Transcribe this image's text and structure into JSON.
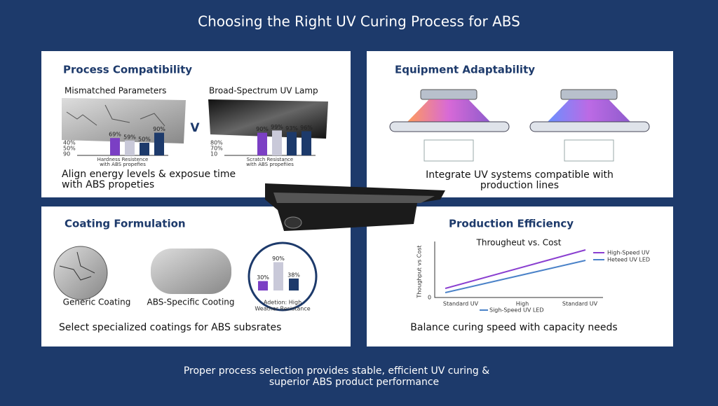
{
  "header": {
    "title": "Choosing the Right UV Curing Process for ABS"
  },
  "panels": [
    {
      "title": "Process Compatibility",
      "left_label": "Mismatched Parameters",
      "right_label": "Broad-Spectrum UV Lamp",
      "versus": "V",
      "charts": [
        {
          "axis_labels": [
            "40%",
            "50%",
            "90"
          ],
          "caption": [
            "Hardness Resistence",
            "with ABS propefies"
          ],
          "bars": [
            {
              "value": 69,
              "label": "69%"
            },
            {
              "value": 59,
              "label": "59%"
            },
            {
              "value": 50,
              "label": "50%"
            },
            {
              "value": 90,
              "label": "90%"
            }
          ]
        },
        {
          "axis_labels": [
            "80%",
            "70%",
            "10"
          ],
          "caption": [
            "Scratch Resistance",
            "with ABS propefiies"
          ],
          "bars": [
            {
              "value": 90,
              "label": "90%"
            },
            {
              "value": 99,
              "label": "99%"
            },
            {
              "value": 93,
              "label": "93%"
            },
            {
              "value": 96,
              "label": "96%"
            }
          ]
        }
      ],
      "footer": [
        "Align energy levels & exposue time",
        "with ABS propeties"
      ]
    },
    {
      "title": "Equipment Adaptability",
      "footer": [
        "Integrate UV systems compatible with",
        "production lines"
      ]
    },
    {
      "title": "Coating Formulation",
      "labels": [
        "Generic Coating",
        "ABS-Specific Cooting"
      ],
      "chart_caption": [
        "Adetion: High",
        "Weather Resistance"
      ],
      "bars": [
        {
          "value": 30,
          "label": "30%"
        },
        {
          "value": 90,
          "label": "90%"
        },
        {
          "value": 38,
          "label": "38%"
        }
      ],
      "footer": [
        "Select specialized coatings for ABS subsrates"
      ]
    },
    {
      "title": "Production Efficiency",
      "chart_title": "Througheut vs. Cost",
      "y_label": "Thoughput vs Cost",
      "y_zero": "0",
      "legend": [
        "High-Speed UV",
        "Heteed UV LED"
      ],
      "x_labels": [
        "Standard UV",
        "High",
        "Standard UV"
      ],
      "x_note": "Sigh-Speed UV LED",
      "footer": [
        "Balance curing speed with capacity needs"
      ]
    }
  ],
  "footer": [
    "Proper process selection provides stable, efficient UV curing &",
    "superior ABS product performance"
  ]
}
